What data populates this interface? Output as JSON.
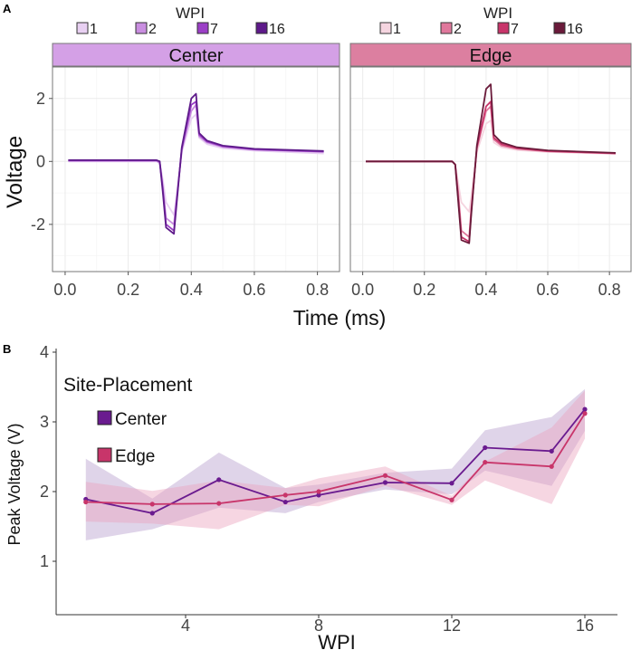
{
  "chart_data": [
    {
      "panel_label": "A",
      "type": "line",
      "xlabel": "Time (ms)",
      "ylabel": "Voltage",
      "xlim": [
        -0.04,
        0.87
      ],
      "ylim": [
        -3.5,
        3.0
      ],
      "xticks": [
        "0.0",
        "0.2",
        "0.4",
        "0.6",
        "0.8"
      ],
      "xtick_values": [
        0,
        0.2,
        0.4,
        0.6,
        0.8
      ],
      "yticks": [
        "-2",
        "0",
        "2"
      ],
      "ytick_values": [
        -2,
        0,
        2
      ],
      "grid": true,
      "legend_title": "WPI",
      "legend_position": "top",
      "t": [
        0.01,
        0.29,
        0.3,
        0.31,
        0.32,
        0.345,
        0.352,
        0.37,
        0.4,
        0.415,
        0.425,
        0.45,
        0.5,
        0.6,
        0.82
      ],
      "facets": [
        {
          "name": "Center",
          "strip_color": "#d4a0e6",
          "series": [
            {
              "name": "1",
              "color": "#e8d0f2",
              "values": [
                0.0,
                0.0,
                -0.05,
                -0.6,
                -1.3,
                -1.7,
                -1.2,
                0.3,
                1.35,
                1.5,
                0.75,
                0.55,
                0.42,
                0.34,
                0.25
              ]
            },
            {
              "name": "2",
              "color": "#c98ee0",
              "values": [
                0.02,
                0.02,
                -0.05,
                -0.8,
                -1.8,
                -2.0,
                -1.3,
                0.35,
                1.6,
                1.8,
                0.8,
                0.6,
                0.46,
                0.37,
                0.3
              ]
            },
            {
              "name": "7",
              "color": "#9b3fc6",
              "values": [
                0.03,
                0.03,
                0.0,
                -0.9,
                -2.0,
                -2.2,
                -1.4,
                0.4,
                1.8,
                1.9,
                0.85,
                0.63,
                0.48,
                0.38,
                0.31
              ]
            },
            {
              "name": "16",
              "color": "#5e1a8a",
              "values": [
                0.04,
                0.04,
                0.0,
                -1.0,
                -2.1,
                -2.3,
                -1.5,
                0.45,
                2.0,
                2.15,
                0.9,
                0.66,
                0.5,
                0.4,
                0.33
              ]
            }
          ]
        },
        {
          "name": "Edge",
          "strip_color": "#dc7fa0",
          "series": [
            {
              "name": "1",
              "color": "#f5d5e0",
              "values": [
                0.0,
                0.0,
                -0.1,
                -0.7,
                -1.3,
                -1.6,
                -1.1,
                0.3,
                1.2,
                1.3,
                0.6,
                0.45,
                0.36,
                0.3,
                0.24
              ]
            },
            {
              "name": "2",
              "color": "#e0789c",
              "values": [
                0.0,
                0.0,
                -0.1,
                -1.0,
                -2.2,
                -2.4,
                -1.5,
                0.4,
                1.6,
                1.75,
                0.7,
                0.5,
                0.4,
                0.32,
                0.25
              ]
            },
            {
              "name": "7",
              "color": "#c8356a",
              "values": [
                0.0,
                0.0,
                -0.1,
                -1.2,
                -2.4,
                -2.55,
                -1.6,
                0.45,
                1.75,
                1.9,
                0.75,
                0.55,
                0.42,
                0.33,
                0.26
              ]
            },
            {
              "name": "16",
              "color": "#6a1a3a",
              "values": [
                0.0,
                0.0,
                -0.1,
                -1.3,
                -2.5,
                -2.6,
                -1.7,
                0.5,
                2.3,
                2.45,
                0.85,
                0.6,
                0.45,
                0.35,
                0.27
              ]
            }
          ]
        }
      ]
    },
    {
      "panel_label": "B",
      "type": "line",
      "xlabel": "WPI",
      "ylabel": "Peak Voltage (V)",
      "xlim": [
        0.1,
        17
      ],
      "ylim": [
        0.8,
        4.1
      ],
      "xticks": [
        "4",
        "8",
        "12",
        "16"
      ],
      "xtick_values": [
        4,
        8,
        12,
        16
      ],
      "yticks": [
        "1",
        "2",
        "3",
        "4"
      ],
      "ytick_values": [
        1,
        2,
        3,
        4
      ],
      "grid": false,
      "legend_title": "Site-Placement",
      "legend_position": "top-left",
      "x": [
        1,
        3,
        5,
        7,
        8,
        10,
        12,
        13,
        15,
        16
      ],
      "series": [
        {
          "name": "Center",
          "color": "#6a1b8f",
          "band_color": "#b79fcf",
          "values": [
            1.89,
            1.69,
            2.17,
            1.85,
            1.95,
            2.13,
            2.12,
            2.63,
            2.58,
            3.18
          ],
          "lower": [
            1.3,
            1.46,
            1.77,
            1.69,
            1.85,
            2.03,
            1.96,
            2.3,
            2.08,
            2.87
          ],
          "upper": [
            2.47,
            1.9,
            2.56,
            2.05,
            2.1,
            2.27,
            2.33,
            2.88,
            3.07,
            3.47
          ]
        },
        {
          "name": "Edge",
          "color": "#c8356a",
          "band_color": "#eaa3bf",
          "values": [
            1.85,
            1.82,
            1.83,
            1.95,
            2.0,
            2.23,
            1.88,
            2.42,
            2.36,
            3.12
          ],
          "lower": [
            1.57,
            1.54,
            1.46,
            1.81,
            1.79,
            2.08,
            1.81,
            2.16,
            1.82,
            2.76
          ],
          "upper": [
            2.14,
            2.01,
            2.16,
            2.05,
            2.19,
            2.36,
            1.94,
            2.43,
            2.92,
            3.45
          ]
        }
      ]
    }
  ]
}
